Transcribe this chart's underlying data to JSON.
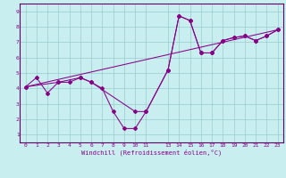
{
  "xlabel": "Windchill (Refroidissement éolien,°C)",
  "bg_color": "#c8eef0",
  "line_color": "#880088",
  "grid_color": "#99cccc",
  "axis_color": "#660066",
  "xlim": [
    -0.5,
    23.5
  ],
  "ylim": [
    0.5,
    9.5
  ],
  "xticks": [
    0,
    1,
    2,
    3,
    4,
    5,
    6,
    7,
    8,
    9,
    10,
    11,
    13,
    14,
    15,
    16,
    17,
    18,
    19,
    20,
    21,
    22,
    23
  ],
  "yticks": [
    1,
    2,
    3,
    4,
    5,
    6,
    7,
    8,
    9
  ],
  "series1_x": [
    0,
    1,
    2,
    3,
    4,
    5,
    6,
    7,
    8,
    9,
    10,
    11,
    13,
    14,
    15,
    16,
    17,
    18,
    19,
    20,
    21,
    22,
    23
  ],
  "series1_y": [
    4.1,
    4.7,
    3.7,
    4.4,
    4.4,
    4.7,
    4.4,
    4.0,
    2.5,
    1.4,
    1.4,
    2.5,
    5.2,
    8.7,
    8.4,
    6.3,
    6.3,
    7.1,
    7.3,
    7.4,
    7.1,
    7.4,
    7.8
  ],
  "series2_x": [
    0,
    3,
    5,
    6,
    10,
    11,
    13,
    14,
    15,
    16,
    17,
    18,
    19,
    20,
    21,
    22,
    23
  ],
  "series2_y": [
    4.1,
    4.4,
    4.7,
    4.4,
    2.5,
    2.5,
    5.2,
    8.7,
    8.4,
    6.3,
    6.3,
    7.1,
    7.3,
    7.4,
    7.1,
    7.4,
    7.8
  ],
  "series3_x": [
    0,
    23
  ],
  "series3_y": [
    4.1,
    7.8
  ]
}
